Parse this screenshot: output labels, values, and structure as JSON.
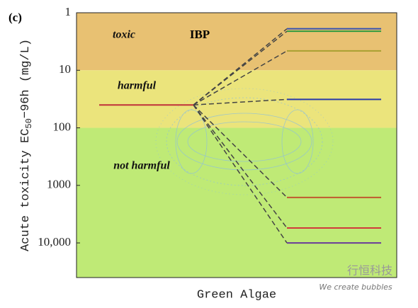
{
  "chart_data": {
    "type": "toxicity-levels",
    "panel_label": "(c)",
    "title": "IBP",
    "ylabel_parts": [
      "Acute toxicity EC",
      "50",
      "−96h (mg/L)"
    ],
    "xlabel": "Green Algae",
    "log_y": true,
    "y_inverted": true,
    "ylim": [
      1,
      40000
    ],
    "yticks": [
      1,
      10,
      100,
      1000,
      {
        "value": 10000,
        "label": "10,000"
      }
    ],
    "zones": [
      {
        "label": "toxic",
        "from": 1,
        "color": "#e8c172"
      },
      {
        "label": "harmful",
        "from": 10,
        "color": "#ebe47c"
      },
      {
        "label": "not harmful",
        "from": 100,
        "color": "#bfea76"
      }
    ],
    "reference": {
      "value": 40,
      "color": "#c0303a"
    },
    "lines": [
      {
        "value": 1.9,
        "color": "#3550b0"
      },
      {
        "value": 2.1,
        "color": "#2f9a40"
      },
      {
        "value": 4.6,
        "color": "#a8a030"
      },
      {
        "value": 32,
        "color": "#2a3aa8"
      },
      {
        "value": 1620,
        "color": "#c05a30"
      },
      {
        "value": 5500,
        "color": "#d03a3a"
      },
      {
        "value": 10000,
        "color": "#6a3a9a"
      }
    ],
    "watermark": {
      "title": "行恒科技",
      "subtitle": "We create bubbles"
    }
  }
}
